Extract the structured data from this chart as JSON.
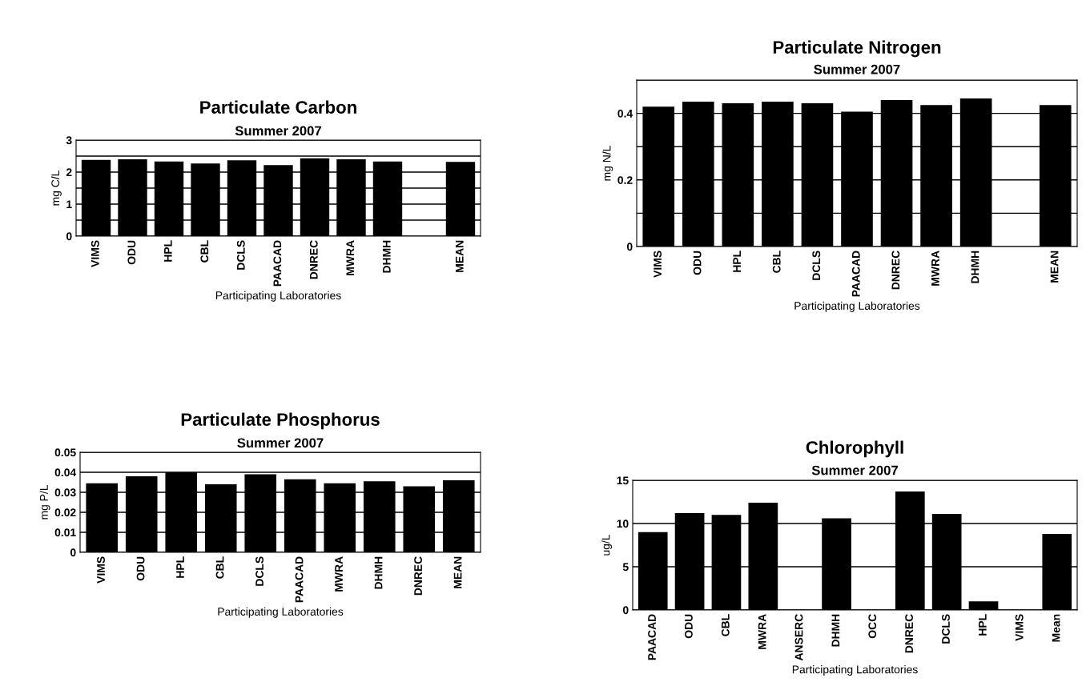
{
  "chart_data": [
    {
      "type": "bar",
      "title": "Particulate Carbon",
      "subtitle": "Summer 2007",
      "xlabel": "Participating Laboratories",
      "ylabel": "mg C/L",
      "categories": [
        "VIMS",
        "ODU",
        "HPL",
        "CBL",
        "DCLS",
        "PAACAD",
        "DNREC",
        "MWRA",
        "DHMH",
        null,
        "MEAN"
      ],
      "values": [
        2.38,
        2.4,
        2.33,
        2.27,
        2.37,
        2.22,
        2.43,
        2.4,
        2.33,
        null,
        2.32
      ],
      "color": "#000000",
      "ylim": [
        0,
        3
      ],
      "yticks": [
        0,
        {
          "value": 0.5,
          "label": null
        },
        1,
        {
          "value": 1.5,
          "label": null
        },
        2,
        {
          "value": 2.5,
          "label": null
        },
        3
      ],
      "grid": "y"
    },
    {
      "type": "bar",
      "title": "Particulate Nitrogen",
      "subtitle": "Summer 2007",
      "xlabel": "Participating Laboratories",
      "ylabel": "mg N/L",
      "categories": [
        "VIMS",
        "ODU",
        "HPL",
        "CBL",
        "DCLS",
        "PAACAD",
        "DNREC",
        "MWRA",
        "DHMH",
        null,
        "MEAN"
      ],
      "values": [
        0.42,
        0.435,
        0.43,
        0.435,
        0.43,
        0.405,
        0.44,
        0.425,
        0.445,
        null,
        0.425
      ],
      "color": "#000000",
      "ylim": [
        0,
        0.5
      ],
      "yticks": [
        0,
        {
          "value": 0.1,
          "label": null
        },
        0.2,
        {
          "value": 0.3,
          "label": null
        },
        0.4,
        {
          "value": 0.5,
          "label": null
        }
      ],
      "grid": "y"
    },
    {
      "type": "bar",
      "title": "Particulate Phosphorus",
      "subtitle": "Summer 2007",
      "xlabel": "Participating Laboratories",
      "ylabel": "mg P/L",
      "categories": [
        "VIMS",
        "ODU",
        "HPL",
        "CBL",
        "DCLS",
        "PAACAD",
        "MWRA",
        "DHMH",
        "DNREC",
        "MEAN"
      ],
      "values": [
        0.0345,
        0.038,
        0.04,
        0.034,
        0.039,
        0.0365,
        0.0345,
        0.0355,
        0.033,
        0.036
      ],
      "color": "#000000",
      "ylim": [
        0,
        0.05
      ],
      "yticks": [
        0,
        0.01,
        0.02,
        0.03,
        0.04,
        0.05
      ],
      "grid": "y"
    },
    {
      "type": "bar",
      "title": "Chlorophyll",
      "subtitle": "Summer 2007",
      "xlabel": "Participating Laboratories",
      "ylabel": "ug/L",
      "categories": [
        "PAACAD",
        "ODU",
        "CBL",
        "MWRA",
        "ANSERC",
        "DHMH",
        "OCC",
        "DNREC",
        "DCLS",
        "HPL",
        "VIMS",
        "Mean"
      ],
      "values": [
        9.0,
        11.2,
        11.0,
        12.4,
        null,
        10.6,
        null,
        13.7,
        11.1,
        1.0,
        null,
        8.8
      ],
      "color": "#000000",
      "ylim": [
        0,
        15
      ],
      "yticks": [
        0,
        5,
        10,
        15
      ],
      "grid": "y"
    }
  ]
}
